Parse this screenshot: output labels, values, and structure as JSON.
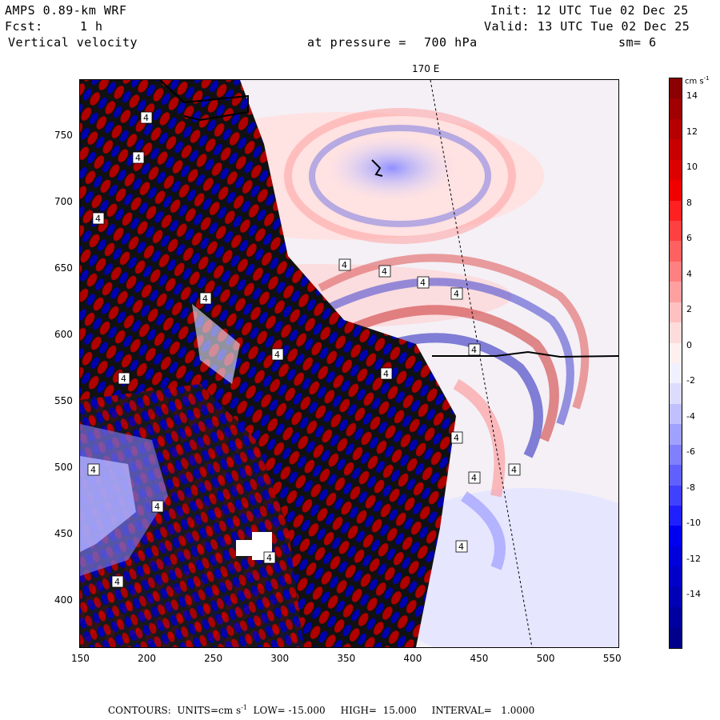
{
  "header": {
    "model": "AMPS 0.89-km WRF",
    "forecast_label": "Fcst:",
    "forecast_value": "1 h",
    "field": "Vertical velocity",
    "init": "Init: 12 UTC Tue 02 Dec 25",
    "valid": "Valid: 13 UTC Tue 02 Dec 25",
    "pressure_label": "at pressure =",
    "pressure_value": "700 hPa",
    "smoothing": "sm= 6"
  },
  "map": {
    "longitude_label": "170 E",
    "x_ticks": [
      "150",
      "200",
      "250",
      "300",
      "350",
      "400",
      "450",
      "500",
      "550"
    ],
    "y_ticks": [
      "750",
      "700",
      "650",
      "600",
      "550",
      "500",
      "450",
      "400"
    ],
    "contour_marker_label": "4"
  },
  "colorbar": {
    "units": "cm s",
    "units_exp": "-1",
    "labels": [
      "14",
      "12",
      "10",
      "8",
      "6",
      "4",
      "2",
      "0",
      "-2",
      "-4",
      "-6",
      "-8",
      "-10",
      "-12",
      "-14"
    ],
    "colors": [
      "#8b0000",
      "#a00000",
      "#b40000",
      "#c80000",
      "#dc0000",
      "#f00000",
      "#ff2020",
      "#ff4040",
      "#ff6060",
      "#ff8080",
      "#ffa0a0",
      "#ffc0c0",
      "#ffdcdc",
      "#fff0f0",
      "#f0f0ff",
      "#dcdcff",
      "#c0c0ff",
      "#a0a0ff",
      "#8080ff",
      "#6060ff",
      "#4040ff",
      "#2020ff",
      "#0000f0",
      "#0000dc",
      "#0000c8",
      "#0000b4",
      "#0000a0",
      "#00008b"
    ]
  },
  "footer": {
    "text": "CONTOURS:  UNITS=cm s",
    "exp": "-1",
    "rest": "  LOW= -15.000     HIGH=  15.000     INTERVAL=   1.0000"
  }
}
